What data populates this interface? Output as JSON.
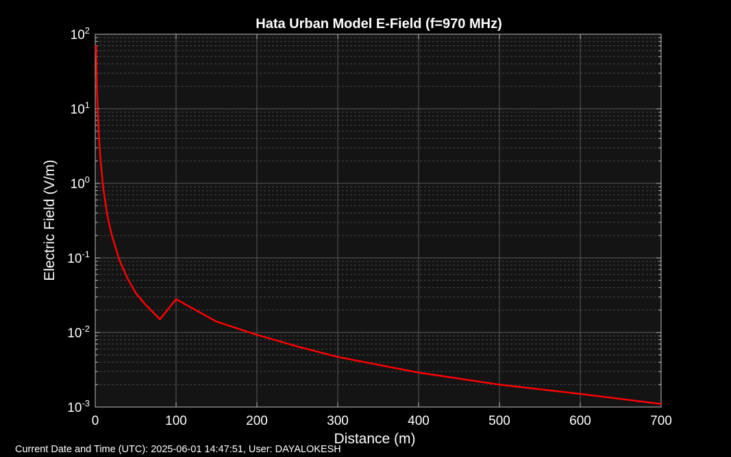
{
  "footer": {
    "text": "Current Date and Time (UTC): 2025-06-01 14:47:51, User: DAYALOKESH"
  },
  "colors": {
    "background": "#000000",
    "plot_area": "#141414",
    "grid": "#5a5a5a",
    "axis": "#bfbfbf",
    "text": "#ffffff",
    "line": "#ff0000"
  },
  "chart_data": {
    "type": "line",
    "title": "Hata Urban Model E-Field (f=970 MHz)",
    "xlabel": "Distance (m)",
    "ylabel": "Electric Field (V/m)",
    "xlim": [
      0,
      700
    ],
    "ylim": [
      0.001,
      100
    ],
    "yscale": "log",
    "grid": true,
    "minor_grid": true,
    "x_ticks": [
      0,
      100,
      200,
      300,
      400,
      500,
      600,
      700
    ],
    "y_tick_labels": [
      {
        "value": 100,
        "base": "10",
        "exp": "2"
      },
      {
        "value": 10,
        "base": "10",
        "exp": "1"
      },
      {
        "value": 1,
        "base": "10",
        "exp": "0"
      },
      {
        "value": 0.1,
        "base": "10",
        "exp": "-1"
      },
      {
        "value": 0.01,
        "base": "10",
        "exp": "-2"
      },
      {
        "value": 0.001,
        "base": "10",
        "exp": "-3"
      }
    ],
    "series": [
      {
        "color": "#ff0000",
        "x": [
          1,
          2,
          3,
          5,
          7,
          10,
          15,
          20,
          30,
          40,
          50,
          60,
          80,
          100,
          150,
          200,
          250,
          300,
          400,
          500,
          600,
          700
        ],
        "y": [
          70,
          20,
          10,
          3.5,
          1.8,
          0.85,
          0.37,
          0.21,
          0.093,
          0.053,
          0.034,
          0.025,
          0.015,
          0.028,
          0.014,
          0.0093,
          0.0065,
          0.0047,
          0.0029,
          0.002,
          0.0015,
          0.0011
        ]
      }
    ]
  }
}
